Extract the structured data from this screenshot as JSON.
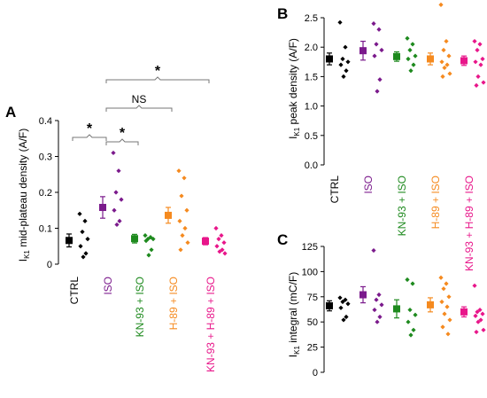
{
  "panels": {
    "a": {
      "letter": "A",
      "ylabel": "I",
      "ylabel_sub": "K1",
      "ylabel_rest": " mid-plateau density (A/F)"
    },
    "b": {
      "letter": "B",
      "ylabel": "I",
      "ylabel_sub": "K1",
      "ylabel_rest": " peak density (A/F)"
    },
    "c": {
      "letter": "C",
      "ylabel": "I",
      "ylabel_sub": "K1",
      "ylabel_rest": " integral (mC/F)"
    }
  },
  "colors": {
    "CTRL": "#000000",
    "ISO": "#7b1a8c",
    "KN-93 + ISO": "#1e8a1e",
    "H-89 + ISO": "#f58a1f",
    "KN-93 + H-89 + ISO": "#e8168a"
  },
  "chart_data": [
    {
      "type": "scatter",
      "panel": "A",
      "categories": [
        "CTRL",
        "ISO",
        "KN-93 + ISO",
        "H-89 + ISO",
        "KN-93 + H-89 + ISO"
      ],
      "ylim": [
        0,
        0.4
      ],
      "yticks": [
        "0",
        "0.1",
        "0.2",
        "0.3",
        "0.4"
      ],
      "means": [
        0.066,
        0.158,
        0.071,
        0.136,
        0.064
      ],
      "errors": [
        0.018,
        0.03,
        0.012,
        0.022,
        0.01
      ],
      "points": [
        [
          0.14,
          0.12,
          0.09,
          0.07,
          0.05,
          0.03,
          0.02
        ],
        [
          0.31,
          0.26,
          0.2,
          0.18,
          0.15,
          0.12,
          0.11
        ],
        [
          0.08,
          0.075,
          0.07,
          0.07,
          0.065,
          0.04,
          0.025
        ],
        [
          0.26,
          0.24,
          0.19,
          0.15,
          0.12,
          0.1,
          0.08,
          0.06,
          0.04
        ],
        [
          0.1,
          0.08,
          0.07,
          0.06,
          0.05,
          0.04,
          0.035,
          0.03
        ]
      ],
      "significance": [
        {
          "pair": [
            "CTRL",
            "ISO"
          ],
          "label": "*"
        },
        {
          "pair": [
            "ISO",
            "KN-93 + ISO"
          ],
          "label": "*"
        },
        {
          "pair": [
            "ISO",
            "H-89 + ISO"
          ],
          "label": "NS"
        },
        {
          "pair": [
            "ISO",
            "KN-93 + H-89 + ISO"
          ],
          "label": "*"
        }
      ]
    },
    {
      "type": "scatter",
      "panel": "B",
      "categories": [
        "CTRL",
        "ISO",
        "KN-93 + ISO",
        "H-89 + ISO",
        "KN-93 + H-89 + ISO"
      ],
      "ylim": [
        0,
        2.5
      ],
      "yticks": [
        "0.0",
        "0.5",
        "1.0",
        "1.5",
        "2.0",
        "2.5"
      ],
      "means": [
        1.8,
        1.94,
        1.84,
        1.8,
        1.77
      ],
      "errors": [
        0.1,
        0.16,
        0.08,
        0.1,
        0.08
      ],
      "points": [
        [
          2.42,
          2.0,
          1.8,
          1.75,
          1.7,
          1.6,
          1.5
        ],
        [
          2.4,
          2.3,
          2.05,
          1.95,
          1.85,
          1.45,
          1.25
        ],
        [
          2.15,
          2.05,
          1.95,
          1.85,
          1.8,
          1.7,
          1.6
        ],
        [
          2.72,
          2.1,
          1.95,
          1.85,
          1.75,
          1.7,
          1.65,
          1.55,
          1.5
        ],
        [
          2.1,
          2.05,
          1.95,
          1.8,
          1.75,
          1.7,
          1.5,
          1.4,
          1.35
        ]
      ]
    },
    {
      "type": "scatter",
      "panel": "C",
      "categories": [
        "CTRL",
        "ISO",
        "KN-93 + ISO",
        "H-89 + ISO",
        "KN-93 + H-89 + ISO"
      ],
      "ylim": [
        0,
        125
      ],
      "yticks": [
        "0",
        "25",
        "50",
        "75",
        "100",
        "125"
      ],
      "means": [
        66,
        77,
        63,
        67,
        60
      ],
      "errors": [
        5,
        8,
        9,
        7,
        5
      ],
      "points": [
        [
          74,
          72,
          70,
          68,
          64,
          55,
          52
        ],
        [
          121,
          77,
          72,
          67,
          62,
          55,
          50
        ],
        [
          92,
          88,
          62,
          57,
          50,
          42,
          37
        ],
        [
          94,
          88,
          83,
          75,
          70,
          65,
          58,
          52,
          45,
          38
        ],
        [
          86,
          62,
          60,
          58,
          56,
          52,
          50,
          42,
          40
        ]
      ]
    }
  ]
}
